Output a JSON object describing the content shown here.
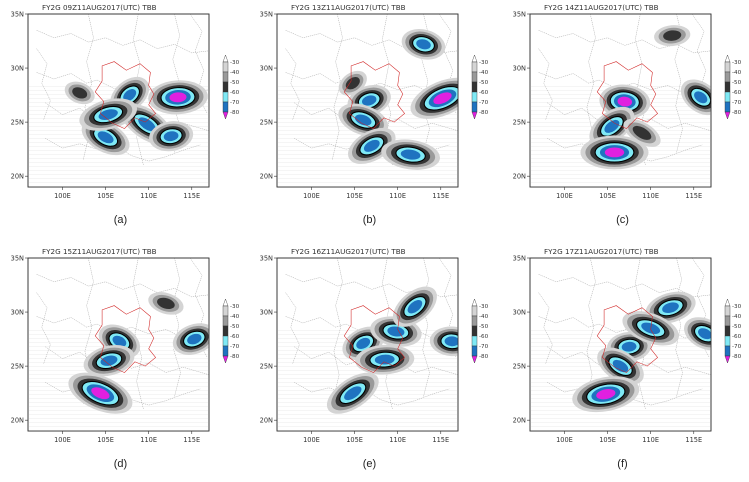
{
  "colorbar": {
    "labels": [
      "-30",
      "-40",
      "-50",
      "-60",
      "-70",
      "-80"
    ],
    "colors": [
      "#ffffff",
      "#d4d4d4",
      "#9a9a9a",
      "#333333",
      "#7fe9f5",
      "#1f73c0",
      "#e020e0"
    ]
  },
  "region_colors": {
    "border": "#a8a8a8",
    "roi": "#d02020"
  },
  "panels": [
    {
      "title": "FY2G 09Z11AUG2017(UTC) TBB",
      "label": "(a)",
      "xticks": [
        "100E",
        "105E",
        "110E",
        "115E"
      ],
      "yticks": [
        "35N",
        "30N",
        "25N",
        "20N"
      ],
      "cloud_cells": [
        {
          "lon": 107.8,
          "lat": 27.5,
          "peak": "-70"
        },
        {
          "lon": 113.4,
          "lat": 27.3,
          "peak": "-80"
        },
        {
          "lon": 109.8,
          "lat": 24.8,
          "peak": "-70"
        },
        {
          "lon": 112.6,
          "lat": 23.7,
          "peak": "-70"
        },
        {
          "lon": 105.0,
          "lat": 23.6,
          "peak": "-70"
        },
        {
          "lon": 105.3,
          "lat": 25.7,
          "peak": "-70"
        },
        {
          "lon": 102.0,
          "lat": 27.7,
          "peak": "-50"
        }
      ]
    },
    {
      "title": "FY2G 13Z11AUG2017(UTC) TBB",
      "label": "(b)",
      "xticks": [
        "100E",
        "105E",
        "110E",
        "115E"
      ],
      "yticks": [
        "35N",
        "30N",
        "25N",
        "20N"
      ],
      "cloud_cells": [
        {
          "lon": 106.7,
          "lat": 27.0,
          "peak": "-70"
        },
        {
          "lon": 106.0,
          "lat": 25.2,
          "peak": "-70"
        },
        {
          "lon": 115.2,
          "lat": 27.2,
          "peak": "-80"
        },
        {
          "lon": 113.0,
          "lat": 32.2,
          "peak": "-70"
        },
        {
          "lon": 107.0,
          "lat": 22.8,
          "peak": "-70"
        },
        {
          "lon": 111.5,
          "lat": 22.0,
          "peak": "-70"
        },
        {
          "lon": 104.8,
          "lat": 28.6,
          "peak": "-50"
        }
      ]
    },
    {
      "title": "FY2G 14Z11AUG2017(UTC) TBB",
      "label": "(c)",
      "xticks": [
        "100E",
        "105E",
        "110E",
        "115E"
      ],
      "yticks": [
        "35N",
        "30N",
        "25N",
        "20N"
      ],
      "cloud_cells": [
        {
          "lon": 107.0,
          "lat": 26.9,
          "peak": "-80"
        },
        {
          "lon": 105.5,
          "lat": 24.6,
          "peak": "-70"
        },
        {
          "lon": 105.8,
          "lat": 22.2,
          "peak": "-80"
        },
        {
          "lon": 115.8,
          "lat": 27.3,
          "peak": "-70"
        },
        {
          "lon": 112.5,
          "lat": 33.0,
          "peak": "-50"
        },
        {
          "lon": 109.0,
          "lat": 24.0,
          "peak": "-50"
        }
      ]
    },
    {
      "title": "FY2G 15Z11AUG2017(UTC) TBB",
      "label": "(d)",
      "xticks": [
        "100E",
        "105E",
        "110E",
        "115E"
      ],
      "yticks": [
        "35N",
        "30N",
        "25N",
        "20N"
      ],
      "cloud_cells": [
        {
          "lon": 106.6,
          "lat": 27.3,
          "peak": "-70"
        },
        {
          "lon": 105.4,
          "lat": 25.5,
          "peak": "-70"
        },
        {
          "lon": 104.4,
          "lat": 22.5,
          "peak": "-80"
        },
        {
          "lon": 115.3,
          "lat": 27.5,
          "peak": "-70"
        },
        {
          "lon": 112.0,
          "lat": 30.8,
          "peak": "-50"
        }
      ]
    },
    {
      "title": "FY2G 16Z11AUG2017(UTC) TBB",
      "label": "(e)",
      "xticks": [
        "100E",
        "105E",
        "110E",
        "115E"
      ],
      "yticks": [
        "35N",
        "30N",
        "25N",
        "20N"
      ],
      "cloud_cells": [
        {
          "lon": 106.0,
          "lat": 27.1,
          "peak": "-70"
        },
        {
          "lon": 109.8,
          "lat": 28.2,
          "peak": "-70"
        },
        {
          "lon": 104.8,
          "lat": 22.5,
          "peak": "-70"
        },
        {
          "lon": 116.3,
          "lat": 27.3,
          "peak": "-70"
        },
        {
          "lon": 112.0,
          "lat": 30.5,
          "peak": "-70"
        },
        {
          "lon": 108.5,
          "lat": 25.6,
          "peak": "-70"
        }
      ]
    },
    {
      "title": "FY2G 17Z11AUG2017(UTC) TBB",
      "label": "(f)",
      "xticks": [
        "100E",
        "105E",
        "110E",
        "115E"
      ],
      "yticks": [
        "35N",
        "30N",
        "25N",
        "20N"
      ],
      "cloud_cells": [
        {
          "lon": 107.5,
          "lat": 26.8,
          "peak": "-70"
        },
        {
          "lon": 106.5,
          "lat": 25.0,
          "peak": "-70"
        },
        {
          "lon": 104.8,
          "lat": 22.4,
          "peak": "-80"
        },
        {
          "lon": 116.3,
          "lat": 28.0,
          "peak": "-70"
        },
        {
          "lon": 112.3,
          "lat": 30.4,
          "peak": "-70"
        },
        {
          "lon": 110.0,
          "lat": 28.5,
          "peak": "-70"
        }
      ]
    }
  ]
}
